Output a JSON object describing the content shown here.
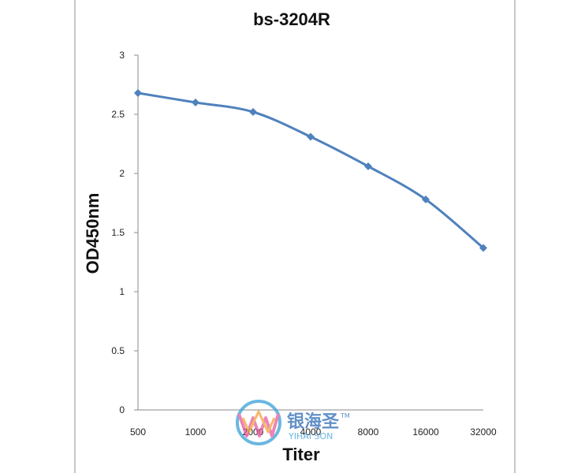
{
  "chart_data": {
    "type": "line",
    "title": "bs-3204R",
    "xlabel": "Titer",
    "ylabel": "OD450nm",
    "categories": [
      "500",
      "1000",
      "2000",
      "4000",
      "8000",
      "16000",
      "32000"
    ],
    "series": [
      {
        "values": [
          2.68,
          2.6,
          2.52,
          2.31,
          2.06,
          1.78,
          1.37
        ]
      }
    ],
    "ylim": [
      0,
      3
    ],
    "yticks": [
      "0",
      "0.5",
      "1",
      "1.5",
      "2",
      "2.5",
      "3"
    ],
    "grid": false,
    "legend": "none",
    "colors": {
      "line": "#4f81bd",
      "axis": "#888888",
      "frame": "#8c8c8c"
    }
  },
  "watermark": {
    "chinese": "银海圣",
    "latin": "YIHAI SON",
    "trademark": "TM"
  }
}
